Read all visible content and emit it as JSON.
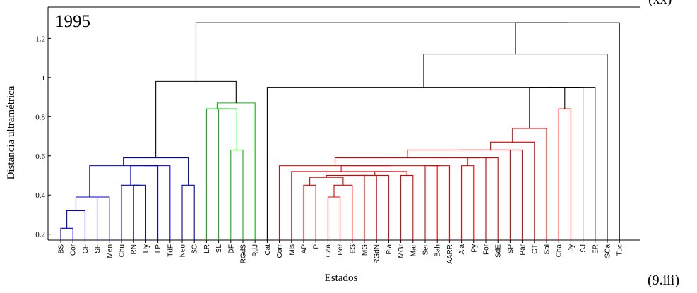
{
  "chart_data": {
    "type": "dendrogram",
    "title": "1995",
    "xlabel": "Estados",
    "ylabel": "Distancia ultramétrica",
    "ylim": [
      0.17,
      1.36
    ],
    "yticks": [
      0.2,
      0.4,
      0.6,
      0.8,
      1,
      1.2
    ],
    "leaves": [
      "BS",
      "Cor",
      "CF",
      "SF",
      "Men",
      "Chu",
      "RN",
      "Uy",
      "LP",
      "TdF",
      "Neu",
      "SC",
      "LR",
      "SL",
      "DF",
      "RGdS",
      "RdJ",
      "Cat",
      "Corr",
      "Mis",
      "AP",
      "P",
      "Cea",
      "Per",
      "ES",
      "MG",
      "RGdN",
      "Pia",
      "MGr",
      "Mar",
      "Ser",
      "Bah",
      "AARR",
      "Ala",
      "Py",
      "For",
      "SdE",
      "SP",
      "Par",
      "GT",
      "Sal",
      "Cha",
      "Jy",
      "SJ",
      "ER",
      "SCa",
      "Tuc"
    ],
    "clusters": [
      {
        "name": "blue",
        "color": "#0000cc"
      },
      {
        "name": "green",
        "color": "#00bb00"
      },
      {
        "name": "red",
        "color": "#dd0000"
      },
      {
        "name": "link",
        "color": "#000000"
      }
    ],
    "merges": [
      {
        "a": "BS",
        "b": "Cor",
        "h": 0.23,
        "color": "blue"
      },
      {
        "a": "m0",
        "b": "CF",
        "h": 0.32,
        "color": "blue"
      },
      {
        "a": "SF",
        "b": "Men",
        "h": 0.39,
        "color": "blue"
      },
      {
        "a": "m1",
        "b": "m2",
        "h": 0.39,
        "color": "blue"
      },
      {
        "a": "RN",
        "b": "Uy",
        "h": 0.45,
        "color": "blue"
      },
      {
        "a": "Chu",
        "b": "m4",
        "h": 0.45,
        "color": "blue"
      },
      {
        "a": "m5",
        "b": "LP",
        "h": 0.55,
        "color": "blue"
      },
      {
        "a": "m6",
        "b": "TdF",
        "h": 0.55,
        "color": "blue"
      },
      {
        "a": "m3",
        "b": "m7",
        "h": 0.55,
        "color": "blue"
      },
      {
        "a": "Neu",
        "b": "SC",
        "h": 0.45,
        "color": "blue"
      },
      {
        "a": "m8",
        "b": "m9",
        "h": 0.59,
        "color": "blue"
      },
      {
        "a": "DF",
        "b": "RGdS",
        "h": 0.63,
        "color": "green"
      },
      {
        "a": "SL",
        "b": "m11",
        "h": 0.84,
        "color": "green"
      },
      {
        "a": "LR",
        "b": "m12",
        "h": 0.84,
        "color": "green"
      },
      {
        "a": "m13",
        "b": "RdJ",
        "h": 0.87,
        "color": "green"
      },
      {
        "a": "m10",
        "b": "m14",
        "h": 0.98,
        "color": "link"
      },
      {
        "a": "Cea",
        "b": "Per",
        "h": 0.39,
        "color": "red"
      },
      {
        "a": "m16",
        "b": "ES",
        "h": 0.45,
        "color": "red"
      },
      {
        "a": "P",
        "b": "AP",
        "h": 0.45,
        "color": "red"
      },
      {
        "a": "m18",
        "b": "m17",
        "h": 0.49,
        "color": "red"
      },
      {
        "a": "m19",
        "b": "MG",
        "h": 0.5,
        "color": "red"
      },
      {
        "a": "m20",
        "b": "RGdN",
        "h": 0.5,
        "color": "red"
      },
      {
        "a": "MGr",
        "b": "Mar",
        "h": 0.5,
        "color": "red"
      },
      {
        "a": "m21",
        "b": "Pia",
        "h": 0.5,
        "color": "red"
      },
      {
        "a": "m23",
        "b": "m22",
        "h": 0.52,
        "color": "red"
      },
      {
        "a": "Mis",
        "b": "m24",
        "h": 0.52,
        "color": "red"
      },
      {
        "a": "Ser",
        "b": "Bah",
        "h": 0.55,
        "color": "red"
      },
      {
        "a": "m26",
        "b": "AARR",
        "h": 0.55,
        "color": "red"
      },
      {
        "a": "m25",
        "b": "m27",
        "h": 0.55,
        "color": "red"
      },
      {
        "a": "Corr",
        "b": "m28",
        "h": 0.55,
        "color": "red"
      },
      {
        "a": "Ala",
        "b": "Py",
        "h": 0.55,
        "color": "red"
      },
      {
        "a": "For",
        "b": "SdE",
        "h": 0.59,
        "color": "red"
      },
      {
        "a": "m30",
        "b": "m31",
        "h": 0.59,
        "color": "red"
      },
      {
        "a": "m29",
        "b": "m32",
        "h": 0.59,
        "color": "red"
      },
      {
        "a": "m33",
        "b": "SP",
        "h": 0.63,
        "color": "red"
      },
      {
        "a": "m34",
        "b": "Par",
        "h": 0.63,
        "color": "red"
      },
      {
        "a": "m35",
        "b": "GT",
        "h": 0.67,
        "color": "red"
      },
      {
        "a": "m36",
        "b": "Sal",
        "h": 0.74,
        "color": "red"
      },
      {
        "a": "Cha",
        "b": "Jy",
        "h": 0.84,
        "color": "red"
      },
      {
        "a": "m37",
        "b": "m38",
        "h": 0.95,
        "color": "link"
      },
      {
        "a": "m39",
        "b": "SJ",
        "h": 0.95,
        "color": "link"
      },
      {
        "a": "m40",
        "b": "ER",
        "h": 0.95,
        "color": "link"
      },
      {
        "a": "Cat",
        "b": "m41",
        "h": 0.95,
        "color": "link"
      },
      {
        "a": "m42",
        "b": "SCa",
        "h": 1.12,
        "color": "link"
      },
      {
        "a": "m43",
        "b": "Tuc",
        "h": 1.28,
        "color": "link"
      },
      {
        "a": "m15",
        "b": "m44",
        "h": 1.28,
        "color": "link"
      }
    ]
  },
  "caption": {
    "panel_label": "(9.iii)",
    "corner_fragment": "(xx)"
  }
}
